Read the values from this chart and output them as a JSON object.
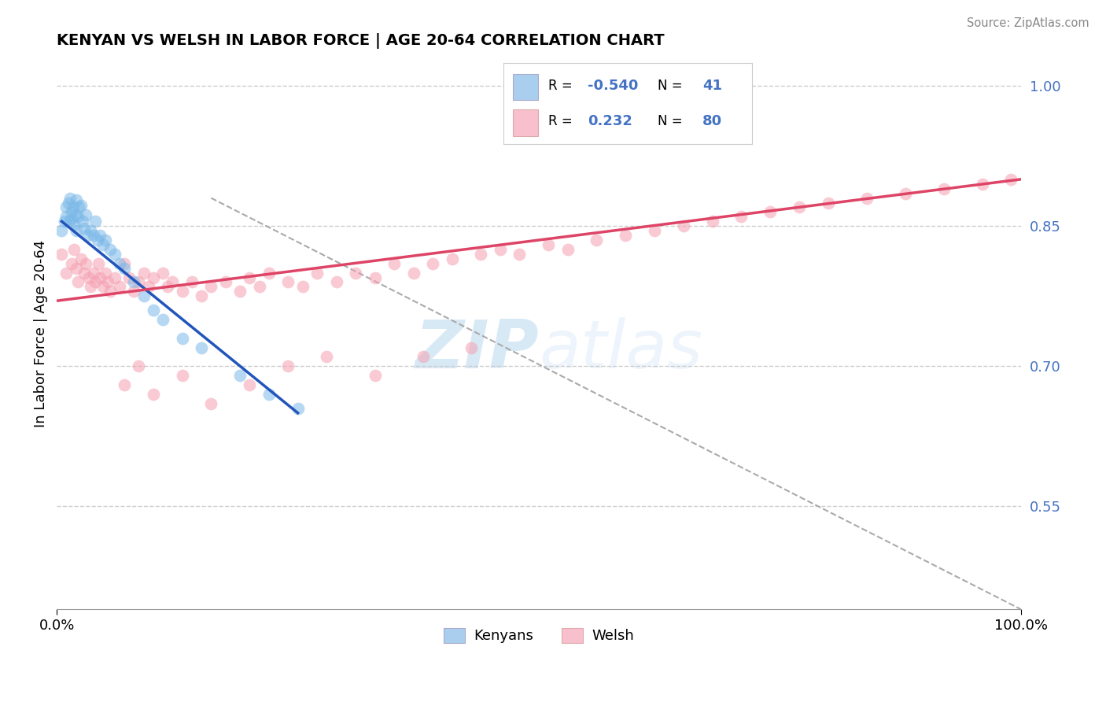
{
  "title": "KENYAN VS WELSH IN LABOR FORCE | AGE 20-64 CORRELATION CHART",
  "ylabel": "In Labor Force | Age 20-64",
  "source": "Source: ZipAtlas.com",
  "watermark_zip": "ZIP",
  "watermark_atlas": "atlas",
  "R_kenyan": -0.54,
  "N_kenyan": 41,
  "R_welsh": 0.232,
  "N_welsh": 80,
  "blue_scatter_color": "#7ab8e8",
  "pink_scatter_color": "#f5a0b0",
  "blue_line_color": "#2255bb",
  "pink_line_color": "#dd4466",
  "blue_legend_fill": "#aacfee",
  "pink_legend_fill": "#f8c0cc",
  "text_blue": "#4472c4",
  "xmin": 0.0,
  "xmax": 1.0,
  "ymin": 0.44,
  "ymax": 1.03,
  "yticks": [
    0.55,
    0.7,
    0.85,
    1.0
  ],
  "ytick_labels": [
    "55.0%",
    "70.0%",
    "85.0%",
    "100.0%"
  ],
  "grid_color": "#cccccc",
  "background_color": "#ffffff",
  "blue_line_x": [
    0.005,
    0.25
  ],
  "blue_line_y": [
    0.855,
    0.65
  ],
  "pink_line_x": [
    0.0,
    1.0
  ],
  "pink_line_y": [
    0.77,
    0.9
  ],
  "dash_line_x": [
    0.16,
    1.0
  ],
  "dash_line_y": [
    0.88,
    0.44
  ],
  "kenyan_x": [
    0.005,
    0.008,
    0.01,
    0.01,
    0.012,
    0.013,
    0.014,
    0.015,
    0.015,
    0.017,
    0.018,
    0.019,
    0.02,
    0.02,
    0.022,
    0.023,
    0.025,
    0.027,
    0.028,
    0.03,
    0.032,
    0.035,
    0.038,
    0.04,
    0.042,
    0.045,
    0.048,
    0.05,
    0.055,
    0.06,
    0.065,
    0.07,
    0.08,
    0.09,
    0.1,
    0.11,
    0.13,
    0.15,
    0.19,
    0.22,
    0.25
  ],
  "kenyan_y": [
    0.845,
    0.855,
    0.87,
    0.86,
    0.875,
    0.855,
    0.88,
    0.865,
    0.858,
    0.87,
    0.852,
    0.862,
    0.878,
    0.845,
    0.86,
    0.87,
    0.872,
    0.855,
    0.848,
    0.862,
    0.84,
    0.845,
    0.84,
    0.855,
    0.835,
    0.84,
    0.83,
    0.835,
    0.825,
    0.82,
    0.81,
    0.805,
    0.79,
    0.775,
    0.76,
    0.75,
    0.73,
    0.72,
    0.69,
    0.67,
    0.655
  ],
  "welsh_x": [
    0.005,
    0.01,
    0.015,
    0.018,
    0.02,
    0.022,
    0.025,
    0.028,
    0.03,
    0.033,
    0.035,
    0.038,
    0.04,
    0.043,
    0.045,
    0.048,
    0.05,
    0.053,
    0.055,
    0.06,
    0.065,
    0.07,
    0.075,
    0.08,
    0.085,
    0.09,
    0.095,
    0.1,
    0.11,
    0.115,
    0.12,
    0.13,
    0.14,
    0.15,
    0.16,
    0.175,
    0.19,
    0.2,
    0.21,
    0.22,
    0.24,
    0.255,
    0.27,
    0.29,
    0.31,
    0.33,
    0.35,
    0.37,
    0.39,
    0.41,
    0.44,
    0.46,
    0.48,
    0.51,
    0.53,
    0.56,
    0.59,
    0.62,
    0.65,
    0.68,
    0.71,
    0.74,
    0.77,
    0.8,
    0.84,
    0.88,
    0.92,
    0.96,
    0.99,
    0.07,
    0.085,
    0.1,
    0.13,
    0.16,
    0.2,
    0.24,
    0.28,
    0.33,
    0.38,
    0.43
  ],
  "welsh_y": [
    0.82,
    0.8,
    0.81,
    0.825,
    0.805,
    0.79,
    0.815,
    0.8,
    0.81,
    0.795,
    0.785,
    0.8,
    0.79,
    0.81,
    0.795,
    0.785,
    0.8,
    0.79,
    0.78,
    0.795,
    0.785,
    0.81,
    0.795,
    0.78,
    0.79,
    0.8,
    0.785,
    0.795,
    0.8,
    0.785,
    0.79,
    0.78,
    0.79,
    0.775,
    0.785,
    0.79,
    0.78,
    0.795,
    0.785,
    0.8,
    0.79,
    0.785,
    0.8,
    0.79,
    0.8,
    0.795,
    0.81,
    0.8,
    0.81,
    0.815,
    0.82,
    0.825,
    0.82,
    0.83,
    0.825,
    0.835,
    0.84,
    0.845,
    0.85,
    0.855,
    0.86,
    0.865,
    0.87,
    0.875,
    0.88,
    0.885,
    0.89,
    0.895,
    0.9,
    0.68,
    0.7,
    0.67,
    0.69,
    0.66,
    0.68,
    0.7,
    0.71,
    0.69,
    0.71,
    0.72
  ]
}
